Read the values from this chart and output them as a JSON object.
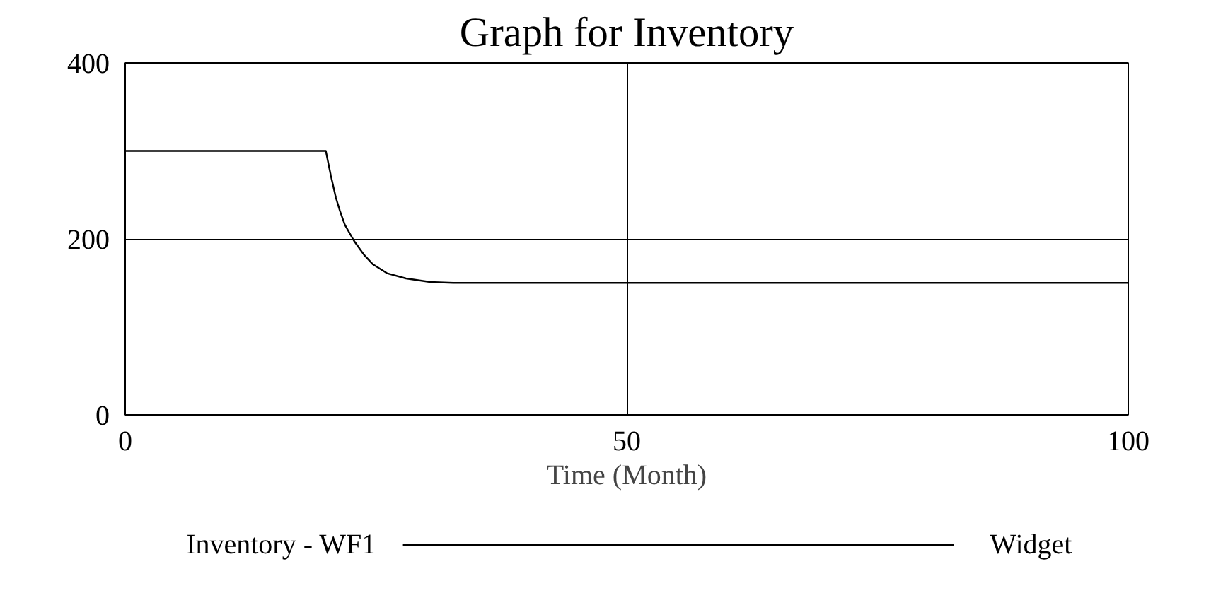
{
  "chart_data": {
    "type": "line",
    "title": "Graph for Inventory",
    "xlabel": "Time (Month)",
    "series": [
      {
        "name": "Inventory - WF1",
        "color": "#000000",
        "x": [
          0,
          20,
          20.5,
          21,
          21.4,
          21.9,
          22.8,
          23.8,
          24.7,
          26.1,
          28,
          30.4,
          32.7,
          100
        ],
        "values": [
          300,
          300,
          272,
          247,
          232,
          216,
          198,
          182,
          171,
          161,
          155,
          151,
          150,
          150
        ]
      }
    ],
    "xlim": [
      0,
      100
    ],
    "xticks": [
      0,
      50,
      100
    ],
    "ylim": [
      0,
      400
    ],
    "yticks": [
      0,
      200,
      400
    ],
    "grid": true,
    "legend": "bottom",
    "annotations": [
      "Widget"
    ]
  }
}
